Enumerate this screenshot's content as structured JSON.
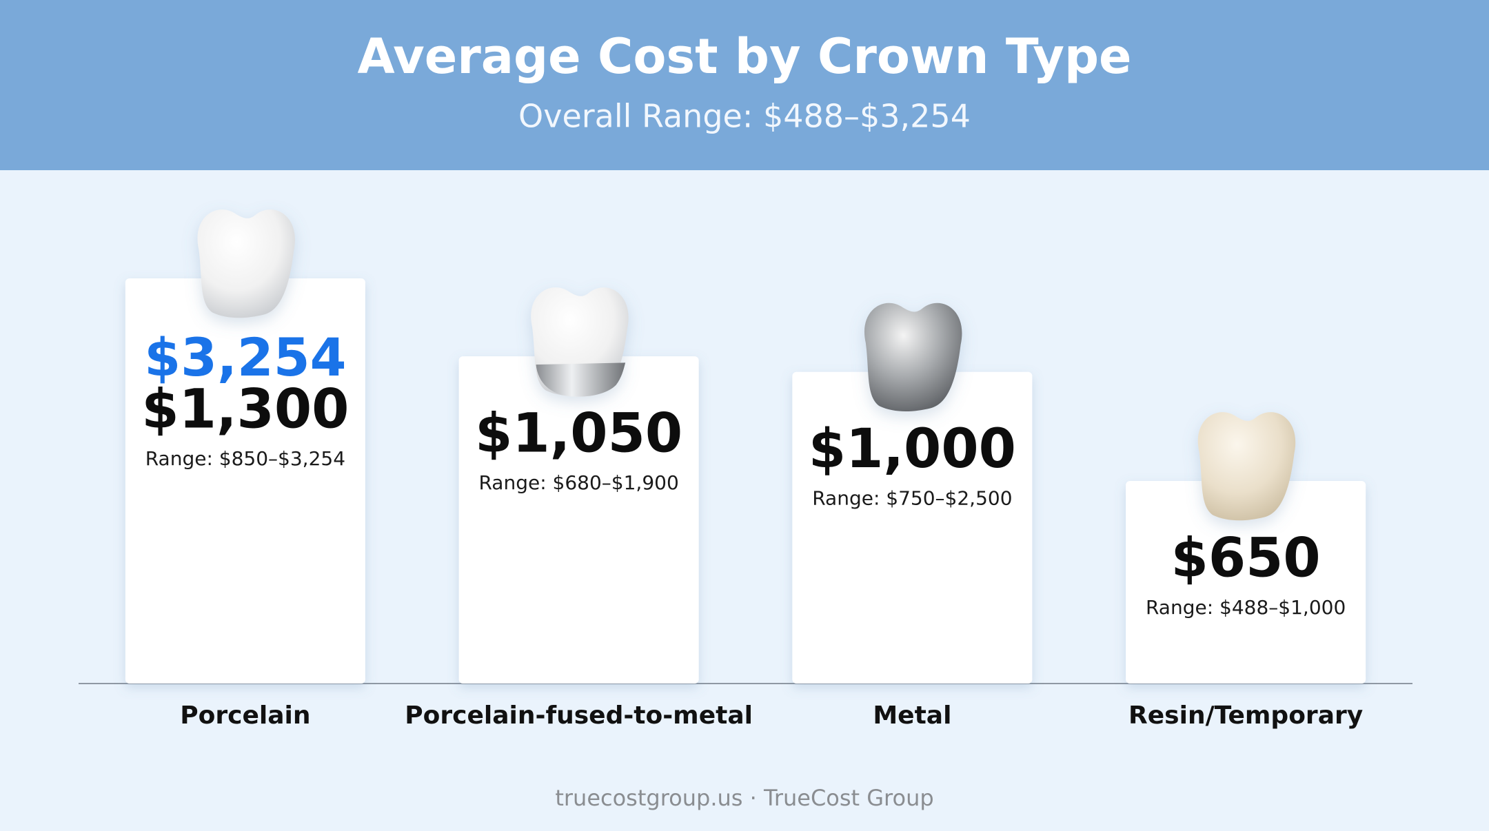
{
  "chart_data": {
    "type": "bar",
    "title": "Average Cost by Crown Type",
    "subtitle": "Overall Range: $488–$3,254",
    "categories": [
      "Porcelain",
      "Porcelain-fused-to-metal",
      "Metal",
      "Resin/Temporary"
    ],
    "values": [
      1300,
      1050,
      1000,
      650
    ],
    "value_labels": [
      "$1,300",
      "$1,050",
      "$1,000",
      "$650"
    ],
    "range_labels": [
      "Range: $850–$3,254",
      "Range: $680–$1,900",
      "Range: $750–$2,500",
      "Range: $488–$1,000"
    ],
    "highlight_label": "$3,254",
    "highlight_color": "#1a73e8",
    "color": "#ffffff",
    "footer": "truecostgroup.us · TrueCost Group"
  }
}
